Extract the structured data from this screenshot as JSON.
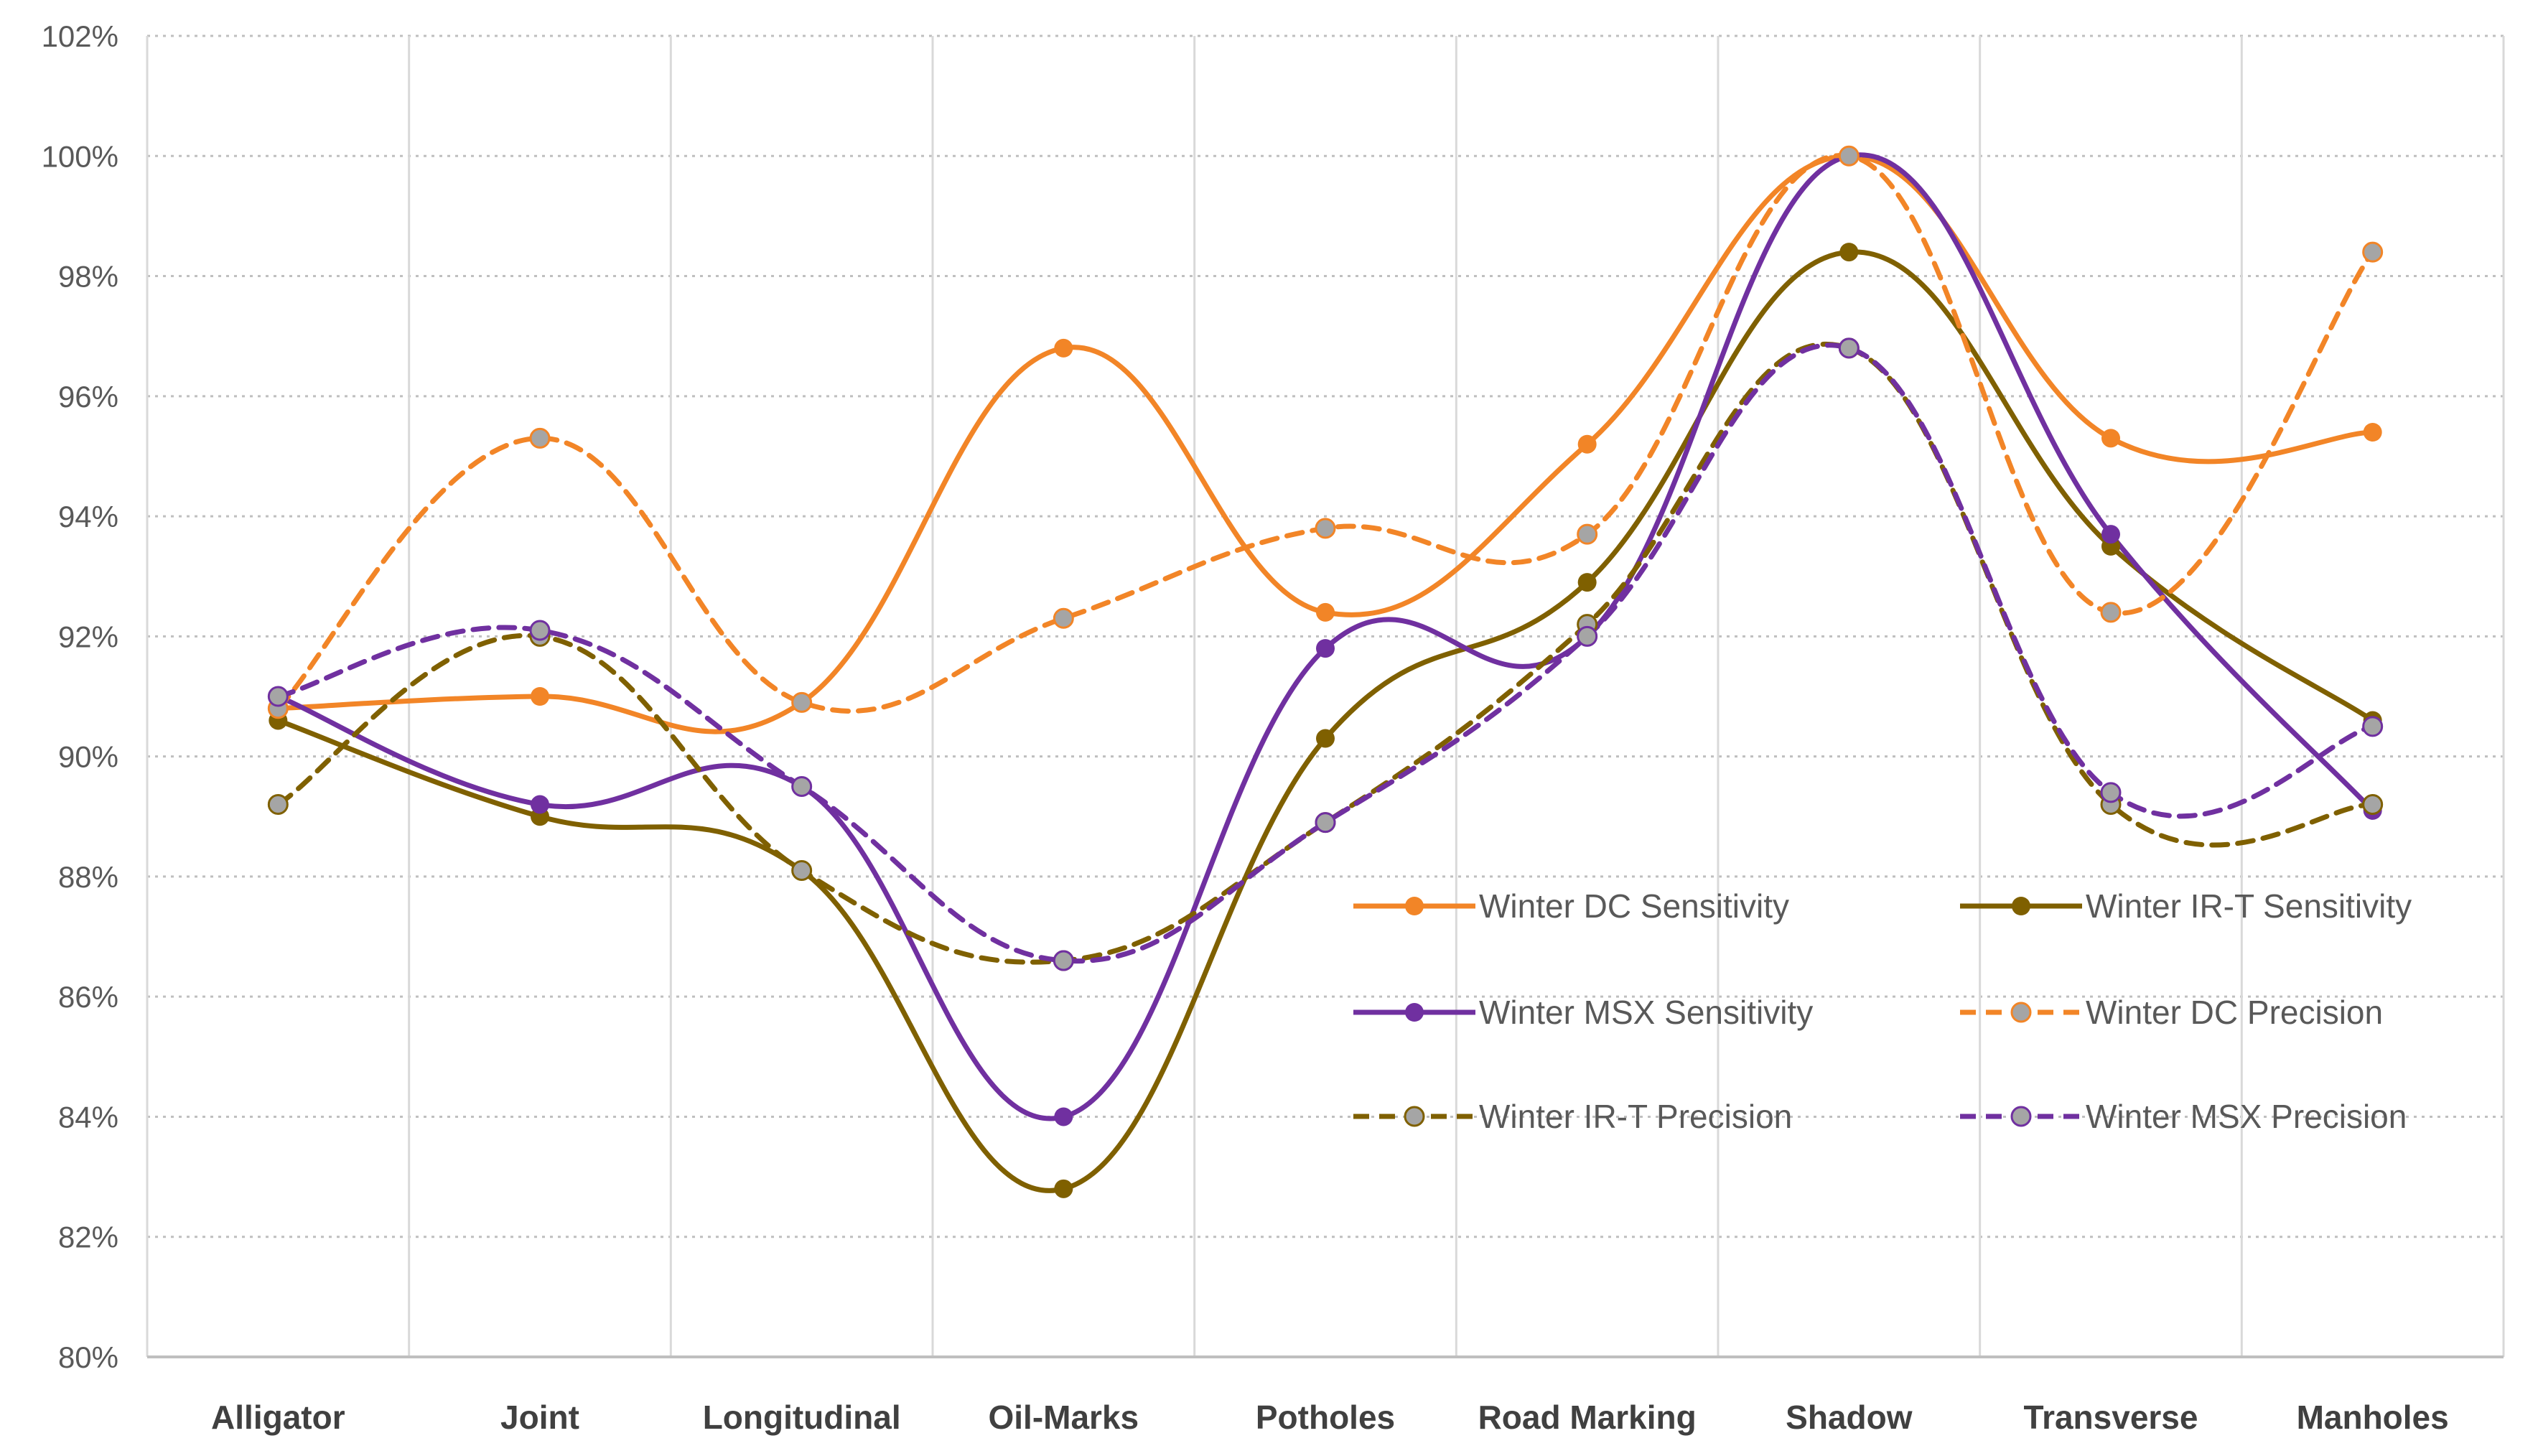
{
  "chart_data": {
    "type": "line",
    "title": "",
    "xlabel": "",
    "ylabel": "",
    "ylim": [
      80,
      102
    ],
    "y_ticks": [
      "80%",
      "82%",
      "84%",
      "86%",
      "88%",
      "90%",
      "92%",
      "94%",
      "96%",
      "98%",
      "100%",
      "102%"
    ],
    "y_tick_values": [
      80,
      82,
      84,
      86,
      88,
      90,
      92,
      94,
      96,
      98,
      100,
      102
    ],
    "grid": {
      "horizontal": "dotted",
      "vertical": "solid"
    },
    "legend_position": "lower-right inside plot",
    "categories": [
      "Alligator",
      "Joint",
      "Longitudinal",
      "Oil-Marks",
      "Potholes",
      "Road Marking",
      "Shadow",
      "Transverse",
      "Manholes"
    ],
    "series": [
      {
        "name": "Winter DC Sensitivity",
        "color": "#F28527",
        "marker_fill": "#F28527",
        "dash": "solid",
        "values": [
          90.8,
          91.0,
          90.9,
          96.8,
          92.4,
          95.2,
          100.0,
          95.3,
          95.4
        ]
      },
      {
        "name": "Winter IR-T Sensitivity",
        "color": "#7F6000",
        "marker_fill": "#7F6000",
        "dash": "solid",
        "values": [
          90.6,
          89.0,
          88.1,
          82.8,
          90.3,
          92.9,
          98.4,
          93.5,
          90.6
        ]
      },
      {
        "name": "Winter MSX Sensitivity",
        "color": "#7030A0",
        "marker_fill": "#7030A0",
        "dash": "solid",
        "values": [
          91.0,
          89.2,
          89.5,
          84.0,
          91.8,
          92.0,
          100.0,
          93.7,
          89.1
        ]
      },
      {
        "name": "Winter DC Precision",
        "color": "#F28527",
        "marker_fill": "#A5A5A5",
        "dash": "dashed",
        "values": [
          90.8,
          95.3,
          90.9,
          92.3,
          93.8,
          93.7,
          100.0,
          92.4,
          98.4
        ]
      },
      {
        "name": "Winter IR-T Precision",
        "color": "#7F6000",
        "marker_fill": "#A5A5A5",
        "dash": "dashed",
        "values": [
          89.2,
          92.0,
          88.1,
          86.6,
          88.9,
          92.2,
          96.8,
          89.2,
          89.2
        ]
      },
      {
        "name": "Winter MSX Precision",
        "color": "#7030A0",
        "marker_fill": "#A5A5A5",
        "dash": "dashed",
        "values": [
          91.0,
          92.1,
          89.5,
          86.6,
          88.9,
          92.0,
          96.8,
          89.4,
          90.5
        ]
      }
    ]
  }
}
